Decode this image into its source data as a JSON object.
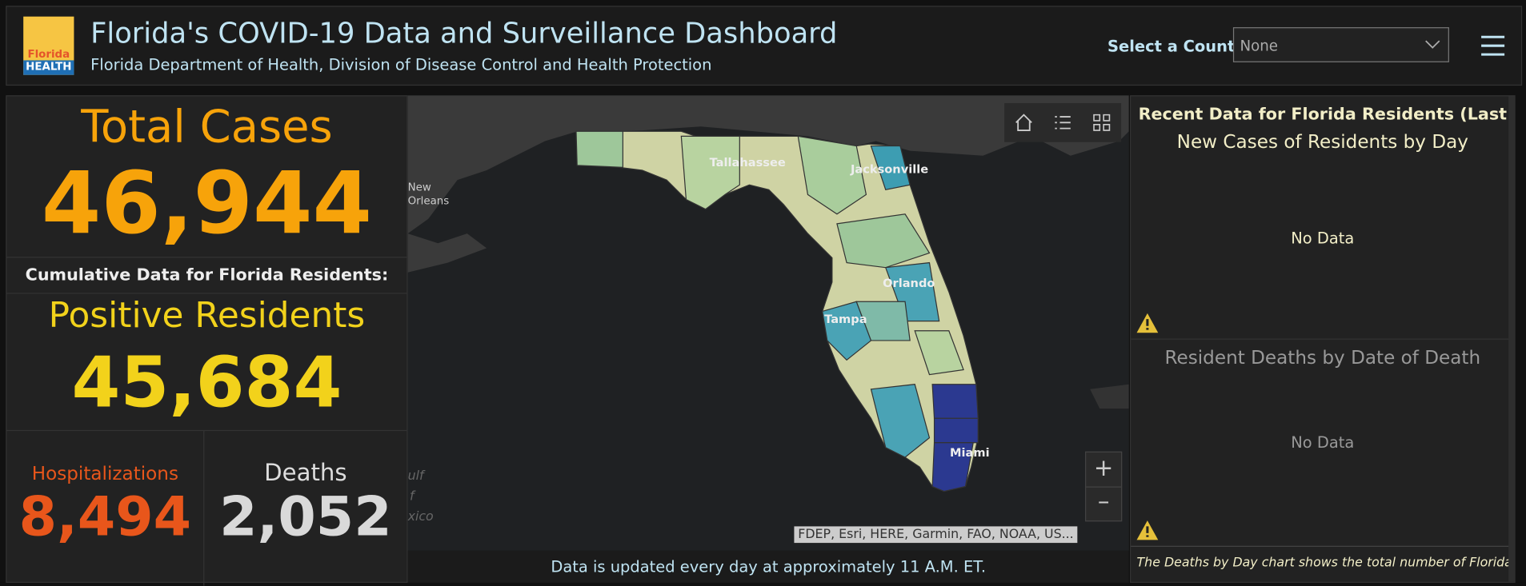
{
  "header": {
    "logo_top": "Florida",
    "logo_bottom": "HEALTH",
    "title": "Florida's COVID-19 Data and Surveillance Dashboard",
    "subtitle": "Florida Department of Health, Division of Disease Control and Health Protection",
    "county_label": "Select a County",
    "county_value": "None"
  },
  "summary": {
    "total_cases_label": "Total Cases",
    "total_cases": "46,944",
    "cumulative_heading": "Cumulative Data for Florida Residents:",
    "positive_label": "Positive Residents",
    "positive": "45,684",
    "hospitalizations_label": "Hospitalizations",
    "hospitalizations": "8,494",
    "deaths_label": "Deaths",
    "deaths": "2,052"
  },
  "map": {
    "cities": [
      "Tallahassee",
      "Jacksonville",
      "New Orleans",
      "Orlando",
      "Tampa",
      "Miami"
    ],
    "gulf": [
      "ulf",
      "f",
      "xico"
    ],
    "zoom_in": "+",
    "zoom_out": "–",
    "attribution": "FDEP, Esri, HERE, Garmin, FAO, NOAA, US...",
    "footer": "Data is updated every day at approximately 11 A.M. ET."
  },
  "recent": {
    "heading": "Recent Data for Florida Residents (Last",
    "chart1_title": "New Cases of Residents by Day",
    "chart1_empty": "No Data",
    "chart2_title": "Resident Deaths by Date of Death",
    "chart2_empty": "No Data",
    "note": "The Deaths by Day chart shows the total number of Florida"
  }
}
